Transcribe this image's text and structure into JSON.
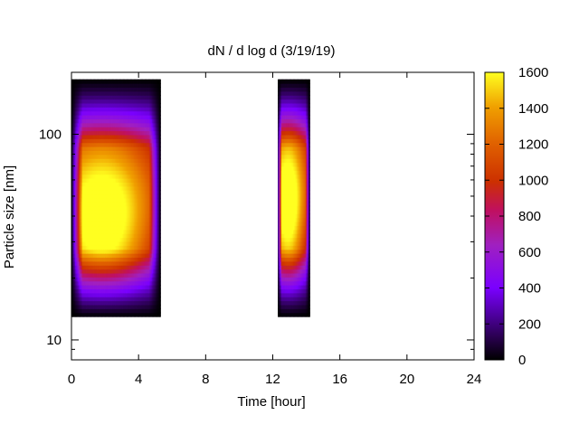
{
  "chart_data": {
    "type": "heatmap",
    "title": "dN / d log d (3/19/19)",
    "xlabel": "Time [hour]",
    "ylabel": "Particle size [nm]",
    "xlim": [
      0,
      24
    ],
    "x_ticks": [
      0,
      4,
      8,
      12,
      16,
      20,
      24
    ],
    "y_scale": "log",
    "ylim": [
      8,
      200
    ],
    "y_ticks": [
      10,
      100
    ],
    "colorbar": {
      "range": [
        0,
        1600
      ],
      "ticks": [
        0,
        200,
        400,
        600,
        800,
        1000,
        1200,
        1400,
        1600
      ],
      "colormap": [
        "#000000",
        "#7a00ff",
        "#d04000",
        "#ffff00"
      ]
    },
    "data_segments": [
      {
        "time_range": [
          0,
          5.3
        ],
        "size_range_nm": [
          13,
          185
        ],
        "peak_value": 1450,
        "peak_time": 1.8,
        "peak_size_nm": 33
      },
      {
        "time_range": [
          12.3,
          14.2
        ],
        "size_range_nm": [
          13,
          185
        ],
        "peak_value": 1400,
        "peak_time": 12.9,
        "peak_size_nm": 40
      }
    ]
  }
}
